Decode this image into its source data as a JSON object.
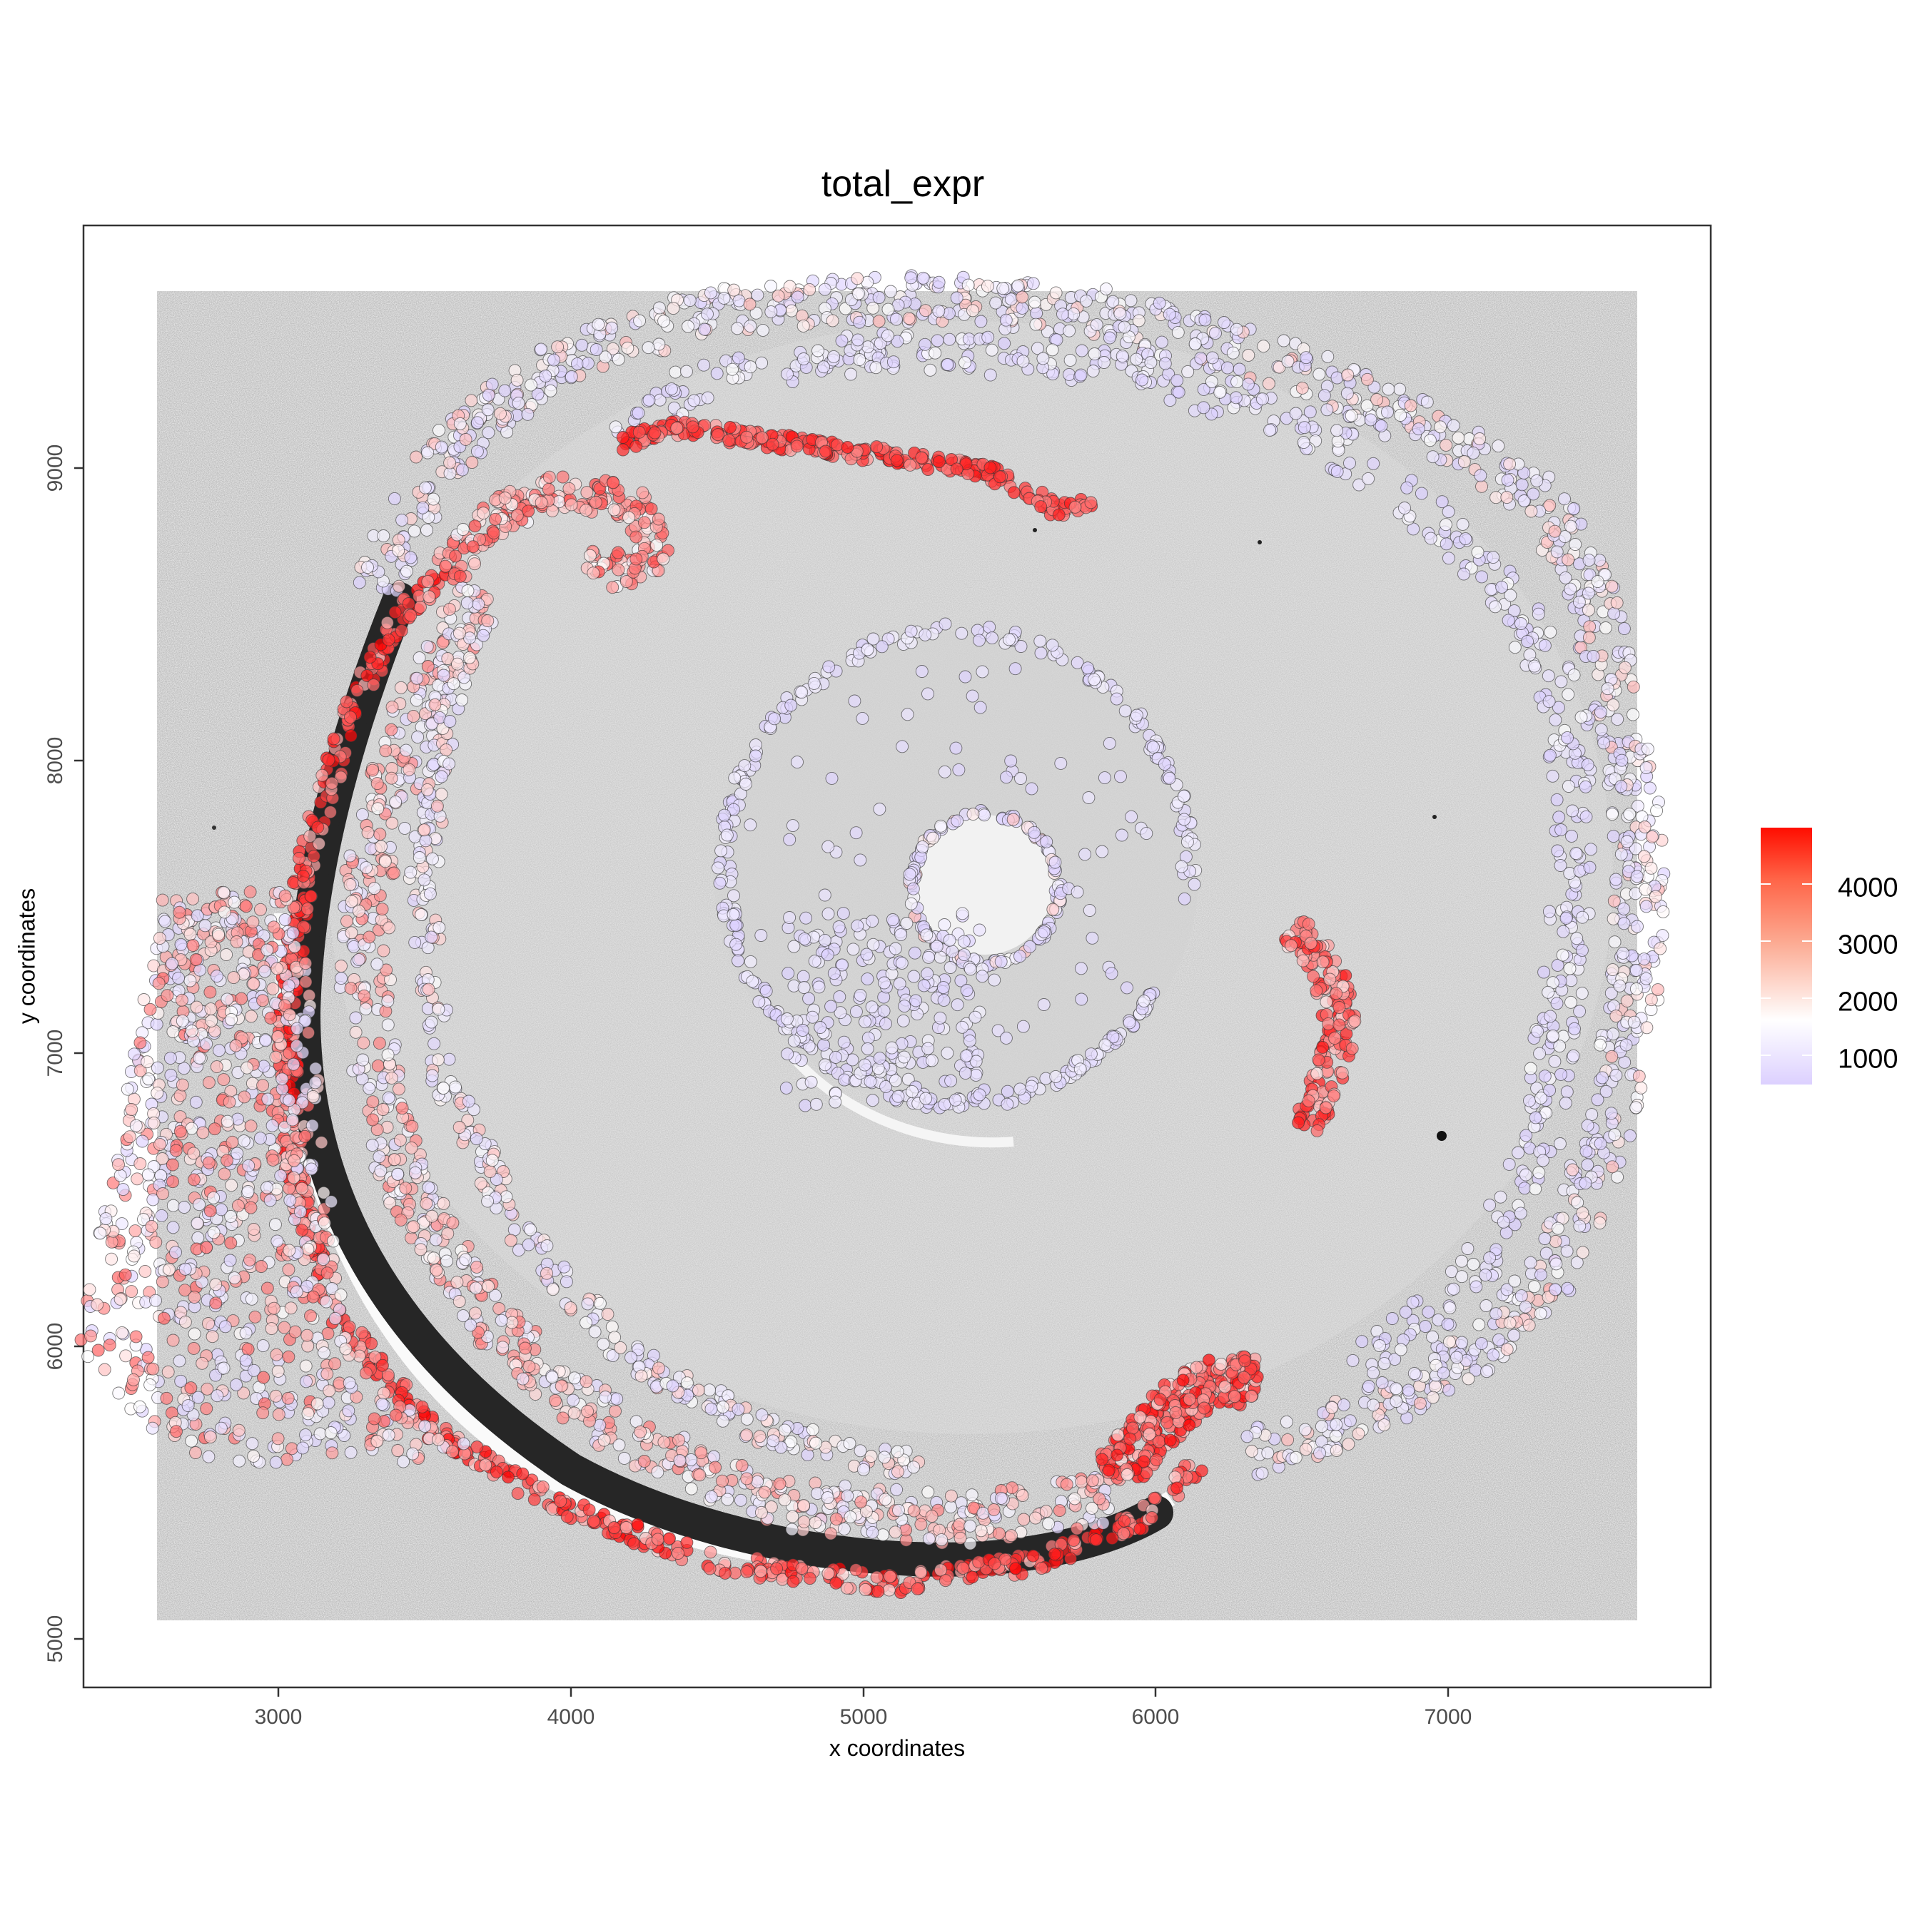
{
  "title": "total_expr",
  "axes": {
    "xlabel": "x coordinates",
    "ylabel": "y coordinates",
    "xticks": [
      {
        "label": "3000",
        "px": 390
      },
      {
        "label": "4000",
        "px": 800
      },
      {
        "label": "5000",
        "px": 1210
      },
      {
        "label": "6000",
        "px": 1619
      },
      {
        "label": "7000",
        "px": 2029
      }
    ],
    "yticks": [
      {
        "label": "9000",
        "px": 656
      },
      {
        "label": "8000",
        "px": 1066
      },
      {
        "label": "7000",
        "px": 1476
      },
      {
        "label": "6000",
        "px": 1887
      },
      {
        "label": "5000",
        "px": 2297
      }
    ]
  },
  "legend": {
    "title": "",
    "colors": {
      "low": "#dcd0ff",
      "mid": "#ffffff",
      "high": "#ff0000"
    },
    "ticks": [
      {
        "label": "4000",
        "py": 1239
      },
      {
        "label": "3000",
        "py": 1319
      },
      {
        "label": "2000",
        "py": 1399
      },
      {
        "label": "1000",
        "py": 1479
      }
    ]
  },
  "chart_data": {
    "type": "scatter",
    "title": "total_expr",
    "xlabel": "x coordinates",
    "ylabel": "y coordinates",
    "xlim": [
      2350,
      7900
    ],
    "ylim": [
      4800,
      9600
    ],
    "x_ticks": [
      3000,
      4000,
      5000,
      6000,
      7000
    ],
    "y_ticks": [
      5000,
      6000,
      7000,
      8000,
      9000
    ],
    "grid": false,
    "background": "grayscale tissue image spanning x≈2600–7680, y≈5030–9580",
    "color_scale": {
      "variable": "total_expr",
      "low": "#dcd0ff",
      "mid": "#ffffff",
      "high": "#ff0000",
      "midpoint_approx": 1500,
      "range": [
        500,
        4990
      ],
      "ticks": [
        1000,
        2000,
        3000,
        4000
      ],
      "legend_position": "right"
    },
    "regions": [
      {
        "name": "outer ring (right/top)",
        "x_range": [
          4200,
          7650
        ],
        "y_range": [
          5050,
          9550
        ],
        "total_expr_approx": [
          600,
          2500
        ]
      },
      {
        "name": "inner arc (left, dark band)",
        "x_range": [
          2950,
          6200
        ],
        "y_range": [
          5100,
          8900
        ],
        "total_expr_approx": [
          1500,
          4990
        ]
      },
      {
        "name": "left lobe",
        "x_range": [
          2600,
          3700
        ],
        "y_range": [
          5350,
          7300
        ],
        "total_expr_approx": [
          800,
          3200
        ]
      },
      {
        "name": "top red band",
        "x_range": [
          4200,
          5800
        ],
        "y_range": [
          8750,
          9150
        ],
        "total_expr_approx": [
          2500,
          4500
        ]
      },
      {
        "name": "center ring",
        "x_range": [
          4500,
          6600
        ],
        "y_range": [
          6600,
          8550
        ],
        "total_expr_approx": [
          500,
          1500
        ]
      },
      {
        "name": "right cluster",
        "x_range": [
          6400,
          6800
        ],
        "y_range": [
          6550,
          7250
        ],
        "total_expr_approx": [
          2000,
          4500
        ]
      },
      {
        "name": "bottom-right hotspot",
        "x_range": [
          5700,
          6450
        ],
        "y_range": [
          5300,
          5800
        ],
        "total_expr_approx": [
          2500,
          4990
        ]
      }
    ]
  }
}
